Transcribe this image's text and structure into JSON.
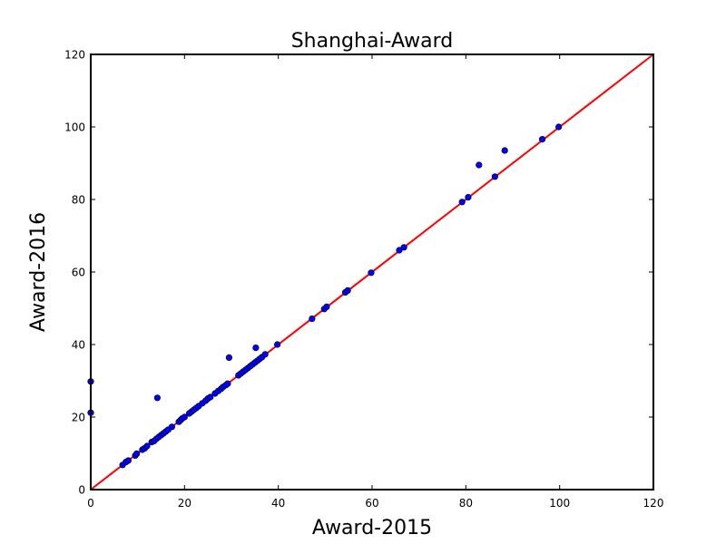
{
  "chart_data": {
    "type": "scatter",
    "title": "Shanghai-Award",
    "xlabel": "Award-2015",
    "ylabel": "Award-2016",
    "xlim": [
      0,
      120
    ],
    "ylim": [
      0,
      120
    ],
    "xticks": [
      0,
      20,
      40,
      60,
      80,
      100,
      120
    ],
    "yticks": [
      0,
      20,
      40,
      60,
      80,
      100,
      120
    ],
    "grid": false,
    "reference_line": {
      "x": [
        0,
        120
      ],
      "y": [
        0,
        120
      ],
      "color": "#ff0000"
    },
    "marker_color": "#0000ff",
    "series": [
      {
        "points": [
          [
            0,
            29.8
          ],
          [
            0,
            21.2
          ],
          [
            6.8,
            6.8
          ],
          [
            7.5,
            7.6
          ],
          [
            8.0,
            8.0
          ],
          [
            9.5,
            9.4
          ],
          [
            9.8,
            9.9
          ],
          [
            11.0,
            11.0
          ],
          [
            11.5,
            11.4
          ],
          [
            12.0,
            12.0
          ],
          [
            13.0,
            13.1
          ],
          [
            13.5,
            13.4
          ],
          [
            14.0,
            14.0
          ],
          [
            14.2,
            25.3
          ],
          [
            14.5,
            14.5
          ],
          [
            15.0,
            15.0
          ],
          [
            15.5,
            15.5
          ],
          [
            16.0,
            16.0
          ],
          [
            16.5,
            16.5
          ],
          [
            17.3,
            17.3
          ],
          [
            18.8,
            18.7
          ],
          [
            19.2,
            19.2
          ],
          [
            19.5,
            19.6
          ],
          [
            20.0,
            20.0
          ],
          [
            21.0,
            21.0
          ],
          [
            21.5,
            21.5
          ],
          [
            22.0,
            22.0
          ],
          [
            22.5,
            22.5
          ],
          [
            23.0,
            23.0
          ],
          [
            23.8,
            23.8
          ],
          [
            24.5,
            24.5
          ],
          [
            25.0,
            25.1
          ],
          [
            25.5,
            25.5
          ],
          [
            26.5,
            26.5
          ],
          [
            27.2,
            27.2
          ],
          [
            27.8,
            27.8
          ],
          [
            28.2,
            28.3
          ],
          [
            28.8,
            28.8
          ],
          [
            29.2,
            29.2
          ],
          [
            29.5,
            36.4
          ],
          [
            31.5,
            31.5
          ],
          [
            32.0,
            32.0
          ],
          [
            32.5,
            32.5
          ],
          [
            33.0,
            33.0
          ],
          [
            33.5,
            33.5
          ],
          [
            34.0,
            34.0
          ],
          [
            34.5,
            34.5
          ],
          [
            35.0,
            35.0
          ],
          [
            35.2,
            39.1
          ],
          [
            35.5,
            35.5
          ],
          [
            36.0,
            36.0
          ],
          [
            36.5,
            36.5
          ],
          [
            37.2,
            37.3
          ],
          [
            39.8,
            40.0
          ],
          [
            47.2,
            47.1
          ],
          [
            49.8,
            49.8
          ],
          [
            50.3,
            50.4
          ],
          [
            54.3,
            54.4
          ],
          [
            54.8,
            54.9
          ],
          [
            59.8,
            59.8
          ],
          [
            65.8,
            66.0
          ],
          [
            66.8,
            66.8
          ],
          [
            79.2,
            79.3
          ],
          [
            80.5,
            80.6
          ],
          [
            82.8,
            89.5
          ],
          [
            86.2,
            86.3
          ],
          [
            88.3,
            93.5
          ],
          [
            96.3,
            96.6
          ],
          [
            99.8,
            100.0
          ]
        ]
      }
    ]
  }
}
